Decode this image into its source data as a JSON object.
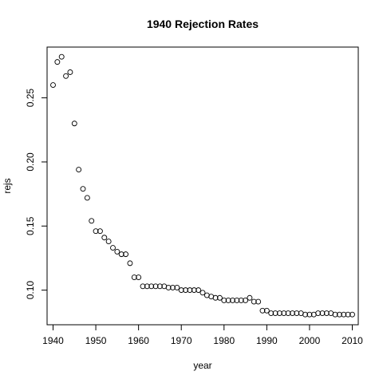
{
  "chart_data": {
    "type": "scatter",
    "title": "1940 Rejection Rates",
    "xlabel": "year",
    "ylabel": "rejs",
    "xlim": [
      1938.6,
      2011.4
    ],
    "ylim": [
      0.073,
      0.2896
    ],
    "x_ticks": [
      1940,
      1950,
      1960,
      1970,
      1980,
      1990,
      2000,
      2010
    ],
    "y_ticks": [
      0.1,
      0.15,
      0.2,
      0.25
    ],
    "x_tick_labels": [
      "1940",
      "1950",
      "1960",
      "1970",
      "1980",
      "1990",
      "2000",
      "2010"
    ],
    "y_tick_labels": [
      "0.10",
      "0.15",
      "0.20",
      "0.25"
    ],
    "marker": "open-circle",
    "grid": false,
    "legend": "none",
    "points": [
      {
        "x": 1940,
        "y": 0.26
      },
      {
        "x": 1941,
        "y": 0.278
      },
      {
        "x": 1942,
        "y": 0.282
      },
      {
        "x": 1943,
        "y": 0.267
      },
      {
        "x": 1944,
        "y": 0.27
      },
      {
        "x": 1945,
        "y": 0.23
      },
      {
        "x": 1946,
        "y": 0.194
      },
      {
        "x": 1947,
        "y": 0.179
      },
      {
        "x": 1948,
        "y": 0.172
      },
      {
        "x": 1949,
        "y": 0.154
      },
      {
        "x": 1950,
        "y": 0.146
      },
      {
        "x": 1951,
        "y": 0.146
      },
      {
        "x": 1952,
        "y": 0.141
      },
      {
        "x": 1953,
        "y": 0.138
      },
      {
        "x": 1954,
        "y": 0.133
      },
      {
        "x": 1955,
        "y": 0.13
      },
      {
        "x": 1956,
        "y": 0.128
      },
      {
        "x": 1957,
        "y": 0.128
      },
      {
        "x": 1958,
        "y": 0.121
      },
      {
        "x": 1959,
        "y": 0.11
      },
      {
        "x": 1960,
        "y": 0.11
      },
      {
        "x": 1961,
        "y": 0.103
      },
      {
        "x": 1962,
        "y": 0.103
      },
      {
        "x": 1963,
        "y": 0.103
      },
      {
        "x": 1964,
        "y": 0.103
      },
      {
        "x": 1965,
        "y": 0.103
      },
      {
        "x": 1966,
        "y": 0.103
      },
      {
        "x": 1967,
        "y": 0.102
      },
      {
        "x": 1968,
        "y": 0.102
      },
      {
        "x": 1969,
        "y": 0.102
      },
      {
        "x": 1970,
        "y": 0.1
      },
      {
        "x": 1971,
        "y": 0.1
      },
      {
        "x": 1972,
        "y": 0.1
      },
      {
        "x": 1973,
        "y": 0.1
      },
      {
        "x": 1974,
        "y": 0.1
      },
      {
        "x": 1975,
        "y": 0.098
      },
      {
        "x": 1976,
        "y": 0.096
      },
      {
        "x": 1977,
        "y": 0.095
      },
      {
        "x": 1978,
        "y": 0.094
      },
      {
        "x": 1979,
        "y": 0.094
      },
      {
        "x": 1980,
        "y": 0.092
      },
      {
        "x": 1981,
        "y": 0.092
      },
      {
        "x": 1982,
        "y": 0.092
      },
      {
        "x": 1983,
        "y": 0.092
      },
      {
        "x": 1984,
        "y": 0.092
      },
      {
        "x": 1985,
        "y": 0.092
      },
      {
        "x": 1986,
        "y": 0.094
      },
      {
        "x": 1987,
        "y": 0.091
      },
      {
        "x": 1988,
        "y": 0.091
      },
      {
        "x": 1989,
        "y": 0.084
      },
      {
        "x": 1990,
        "y": 0.084
      },
      {
        "x": 1991,
        "y": 0.082
      },
      {
        "x": 1992,
        "y": 0.082
      },
      {
        "x": 1993,
        "y": 0.082
      },
      {
        "x": 1994,
        "y": 0.082
      },
      {
        "x": 1995,
        "y": 0.082
      },
      {
        "x": 1996,
        "y": 0.082
      },
      {
        "x": 1997,
        "y": 0.082
      },
      {
        "x": 1998,
        "y": 0.082
      },
      {
        "x": 1999,
        "y": 0.081
      },
      {
        "x": 2000,
        "y": 0.081
      },
      {
        "x": 2001,
        "y": 0.081
      },
      {
        "x": 2002,
        "y": 0.082
      },
      {
        "x": 2003,
        "y": 0.082
      },
      {
        "x": 2004,
        "y": 0.082
      },
      {
        "x": 2005,
        "y": 0.082
      },
      {
        "x": 2006,
        "y": 0.081
      },
      {
        "x": 2007,
        "y": 0.081
      },
      {
        "x": 2008,
        "y": 0.081
      },
      {
        "x": 2009,
        "y": 0.081
      },
      {
        "x": 2010,
        "y": 0.081
      }
    ]
  }
}
